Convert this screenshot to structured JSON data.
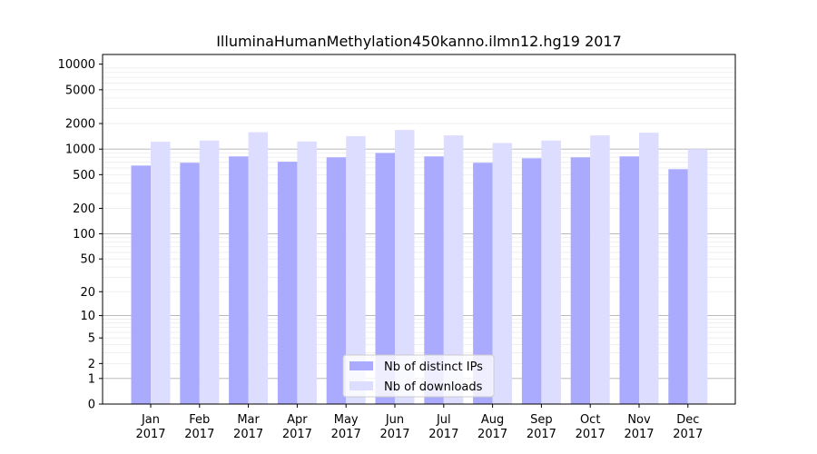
{
  "chart_data": {
    "type": "bar",
    "title": "IlluminaHumanMethylation450kanno.ilmn12.hg19 2017",
    "xlabel": "",
    "ylabel": "",
    "y_scale": "symlog",
    "ylim": [
      0,
      13000
    ],
    "y_ticks": [
      0,
      1,
      2,
      5,
      10,
      20,
      50,
      100,
      200,
      500,
      1000,
      2000,
      5000,
      10000
    ],
    "y_tick_labels": [
      "0",
      "1",
      "2",
      "5",
      "10",
      "20",
      "50",
      "100",
      "200",
      "500",
      "1000",
      "2000",
      "5000",
      "10000"
    ],
    "categories": [
      [
        "Jan",
        "2017"
      ],
      [
        "Feb",
        "2017"
      ],
      [
        "Mar",
        "2017"
      ],
      [
        "Apr",
        "2017"
      ],
      [
        "May",
        "2017"
      ],
      [
        "Jun",
        "2017"
      ],
      [
        "Jul",
        "2017"
      ],
      [
        "Aug",
        "2017"
      ],
      [
        "Sep",
        "2017"
      ],
      [
        "Oct",
        "2017"
      ],
      [
        "Nov",
        "2017"
      ],
      [
        "Dec",
        "2017"
      ]
    ],
    "series": [
      {
        "name": "Nb of distinct IPs",
        "color": "#aaaaff",
        "values": [
          640,
          690,
          820,
          710,
          800,
          900,
          820,
          690,
          780,
          800,
          820,
          580
        ]
      },
      {
        "name": "Nb of downloads",
        "color": "#ddddff",
        "values": [
          1220,
          1260,
          1580,
          1230,
          1420,
          1680,
          1450,
          1180,
          1260,
          1450,
          1560,
          1000
        ]
      }
    ],
    "legend_position": "bottom-center",
    "grid": "horizontal"
  }
}
